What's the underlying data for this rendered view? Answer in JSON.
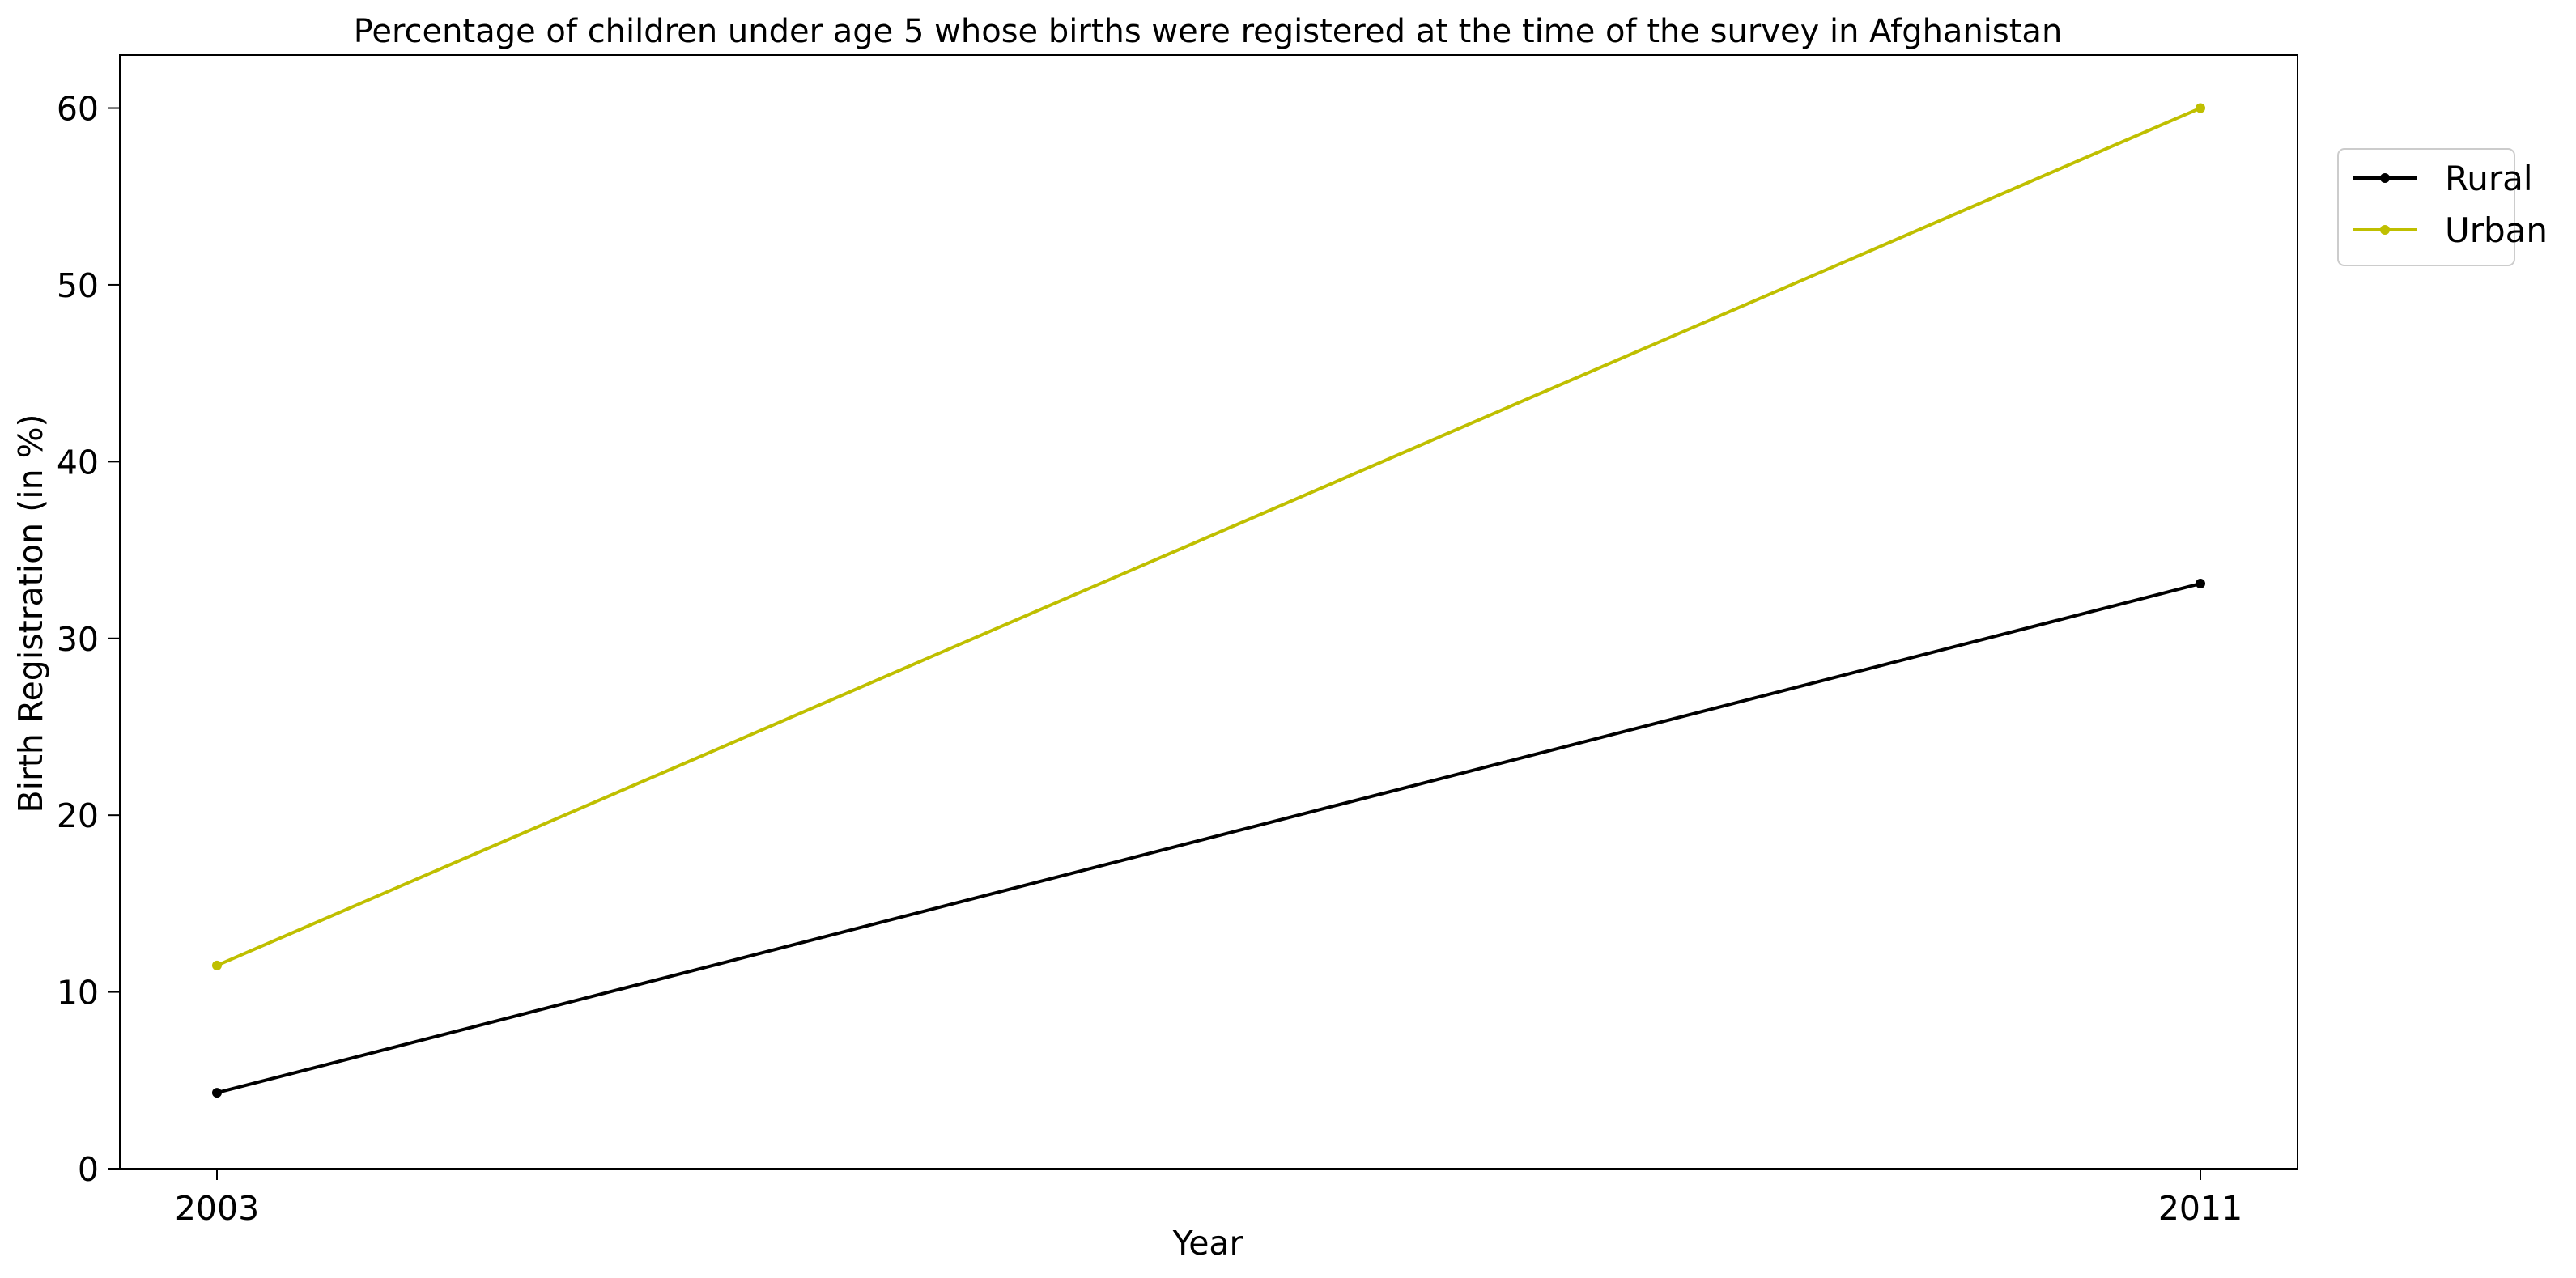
{
  "chart_data": {
    "type": "line",
    "title": "Percentage of children under age 5 whose births were registered at the time of the survey in Afghanistan",
    "xlabel": "Year",
    "ylabel": "Birth Registration (in %)",
    "x": [
      "2003",
      "2011"
    ],
    "ylim": [
      0,
      63
    ],
    "yticks": [
      "0",
      "10",
      "20",
      "30",
      "40",
      "50",
      "60"
    ],
    "grid": false,
    "legend_position": "top-right, outside plot area",
    "series": [
      {
        "name": "Rural",
        "color": "#000000",
        "values": [
          4.3,
          33.1
        ]
      },
      {
        "name": "Urban",
        "color": "#bfbf00",
        "values": [
          11.5,
          60.0
        ]
      }
    ]
  }
}
